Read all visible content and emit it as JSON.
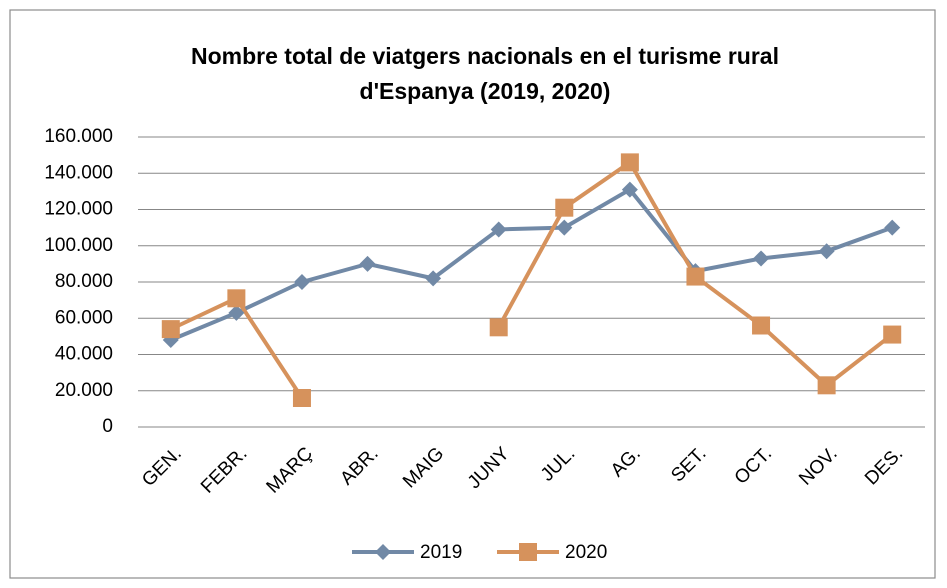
{
  "chart_data": {
    "type": "line",
    "title": [
      "Nombre total de viatgers nacionals en el turisme rural",
      "d'Espanya (2019, 2020)"
    ],
    "categories": [
      "GEN.",
      "FEBR.",
      "MARÇ",
      "ABR.",
      "MAIG",
      "JUNY",
      "JUL.",
      "AG.",
      "SET.",
      "OCT.",
      "NOV.",
      "DES."
    ],
    "series": [
      {
        "name": "2019",
        "color": "#7189a6",
        "marker": "diamond",
        "values": [
          48000,
          63000,
          80000,
          90000,
          82000,
          109000,
          110000,
          131000,
          86000,
          93000,
          97000,
          110000
        ]
      },
      {
        "name": "2020",
        "color": "#d6925c",
        "marker": "square",
        "values": [
          54000,
          71000,
          16000,
          null,
          null,
          55000,
          121000,
          146000,
          83000,
          56000,
          23000,
          51000
        ]
      }
    ],
    "ylim": [
      0,
      160000
    ],
    "yticks": [
      0,
      {
        "value": 20000,
        "label": "20.000"
      },
      {
        "value": 40000,
        "label": "40.000"
      },
      {
        "value": 60000,
        "label": "60.000"
      },
      {
        "value": 80000,
        "label": "80.000"
      },
      {
        "value": 100000,
        "label": "100.000"
      },
      {
        "value": 120000,
        "label": "120.000"
      },
      {
        "value": 140000,
        "label": "140.000"
      },
      {
        "value": 160000,
        "label": "160.000"
      }
    ],
    "grid": true,
    "legend": "bottom"
  }
}
